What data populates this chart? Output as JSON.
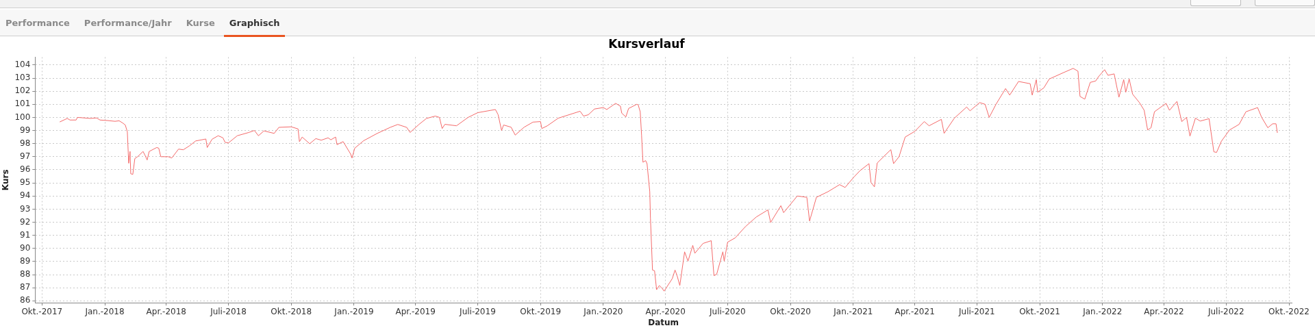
{
  "chart_data": {
    "type": "line",
    "title": "Kursverlauf",
    "xlabel": "Datum",
    "ylabel": "Kurs",
    "annotations": [
      "Performance",
      "Performance/Jahr",
      "Kurse",
      "Graphisch"
    ],
    "x": [
      "2017-10-27",
      "2017-11-07",
      "2017-11-11",
      "2017-11-20",
      "2017-11-22",
      "2017-12-11",
      "2017-12-20",
      "2017-12-25",
      "2018-01-05",
      "2018-01-16",
      "2018-01-22",
      "2018-01-27",
      "2018-01-31",
      "2018-02-03",
      "2018-02-05",
      "2018-02-07",
      "2018-02-08",
      "2018-02-11",
      "2018-02-14",
      "2018-02-18",
      "2018-02-26",
      "2018-03-01",
      "2018-03-04",
      "2018-03-07",
      "2018-03-18",
      "2018-03-21",
      "2018-03-24",
      "2018-04-04",
      "2018-04-09",
      "2018-04-19",
      "2018-04-26",
      "2018-05-05",
      "2018-05-14",
      "2018-05-29",
      "2018-05-31",
      "2018-06-07",
      "2018-06-16",
      "2018-06-23",
      "2018-06-26",
      "2018-07-01",
      "2018-07-14",
      "2018-07-31",
      "2018-08-08",
      "2018-08-14",
      "2018-08-22",
      "2018-09-06",
      "2018-09-13",
      "2018-10-01",
      "2018-10-11",
      "2018-10-13",
      "2018-10-17",
      "2018-10-28",
      "2018-11-06",
      "2018-11-14",
      "2018-11-24",
      "2018-11-28",
      "2018-12-05",
      "2018-12-07",
      "2018-12-16",
      "2018-12-27",
      "2018-12-29",
      "2019-01-02",
      "2019-01-15",
      "2019-02-04",
      "2019-02-23",
      "2019-03-06",
      "2019-03-19",
      "2019-03-24",
      "2019-04-06",
      "2019-04-17",
      "2019-04-30",
      "2019-05-06",
      "2019-05-10",
      "2019-05-14",
      "2019-05-31",
      "2019-06-17",
      "2019-07-01",
      "2019-07-27",
      "2019-07-31",
      "2019-08-05",
      "2019-08-08",
      "2019-08-19",
      "2019-08-25",
      "2019-09-07",
      "2019-09-20",
      "2019-10-01",
      "2019-10-03",
      "2019-10-11",
      "2019-10-27",
      "2019-11-28",
      "2019-12-03",
      "2019-12-10",
      "2019-12-19",
      "2020-01-01",
      "2020-01-06",
      "2020-01-19",
      "2020-01-26",
      "2020-01-28",
      "2020-02-03",
      "2020-02-07",
      "2020-02-19",
      "2020-02-21",
      "2020-02-24",
      "2020-02-26",
      "2020-02-28",
      "2020-03-03",
      "2020-03-05",
      "2020-03-09",
      "2020-03-10",
      "2020-03-13",
      "2020-03-16",
      "2020-03-19",
      "2020-03-23",
      "2020-03-27",
      "2020-03-30",
      "2020-04-03",
      "2020-04-11",
      "2020-04-15",
      "2020-04-18",
      "2020-04-22",
      "2020-04-29",
      "2020-05-04",
      "2020-05-11",
      "2020-05-14",
      "2020-05-26",
      "2020-06-07",
      "2020-06-11",
      "2020-06-15",
      "2020-06-24",
      "2020-06-26",
      "2020-07-01",
      "2020-07-12",
      "2020-07-27",
      "2020-08-12",
      "2020-08-29",
      "2020-09-02",
      "2020-09-17",
      "2020-09-21",
      "2020-10-11",
      "2020-10-25",
      "2020-10-29",
      "2020-11-08",
      "2020-11-25",
      "2020-12-12",
      "2020-12-20",
      "2021-01-02",
      "2021-01-11",
      "2021-01-24",
      "2021-01-27",
      "2021-02-01",
      "2021-02-05",
      "2021-02-25",
      "2021-03-01",
      "2021-03-09",
      "2021-03-18",
      "2021-04-01",
      "2021-04-15",
      "2021-04-22",
      "2021-05-10",
      "2021-05-14",
      "2021-05-20",
      "2021-05-29",
      "2021-06-16",
      "2021-06-21",
      "2021-07-05",
      "2021-07-13",
      "2021-07-19",
      "2021-07-29",
      "2021-08-12",
      "2021-08-18",
      "2021-08-31",
      "2021-09-17",
      "2021-09-20",
      "2021-09-26",
      "2021-09-28",
      "2021-10-07",
      "2021-10-15",
      "2021-11-05",
      "2021-11-19",
      "2021-11-26",
      "2021-11-29",
      "2021-12-06",
      "2021-12-14",
      "2021-12-22",
      "2021-12-26",
      "2022-01-04",
      "2022-01-09",
      "2022-01-18",
      "2022-01-25",
      "2022-02-01",
      "2022-02-04",
      "2022-02-09",
      "2022-02-14",
      "2022-02-24",
      "2022-03-03",
      "2022-03-08",
      "2022-03-13",
      "2022-03-18",
      "2022-04-04",
      "2022-04-09",
      "2022-04-20",
      "2022-04-27",
      "2022-05-04",
      "2022-05-09",
      "2022-05-17",
      "2022-05-24",
      "2022-06-06",
      "2022-06-13",
      "2022-06-17",
      "2022-06-24",
      "2022-07-06",
      "2022-07-20",
      "2022-07-30",
      "2022-08-14",
      "2022-08-16",
      "2022-08-22",
      "2022-08-31",
      "2022-09-07",
      "2022-09-12",
      "2022-09-14"
    ],
    "series": [
      {
        "color": "#f46a6a",
        "values": [
          99.65,
          99.92,
          99.8,
          99.8,
          100.0,
          99.92,
          99.96,
          99.8,
          99.76,
          99.7,
          99.74,
          99.58,
          99.42,
          98.9,
          96.5,
          97.4,
          95.7,
          95.65,
          96.86,
          97.0,
          97.4,
          97.1,
          96.75,
          97.4,
          97.7,
          97.65,
          97.0,
          97.0,
          96.9,
          97.58,
          97.53,
          97.83,
          98.2,
          98.35,
          97.7,
          98.33,
          98.6,
          98.44,
          98.1,
          98.05,
          98.6,
          98.85,
          99.0,
          98.6,
          98.97,
          98.78,
          99.24,
          99.28,
          99.12,
          98.15,
          98.5,
          97.99,
          98.38,
          98.26,
          98.44,
          98.29,
          98.5,
          97.92,
          98.15,
          97.2,
          96.9,
          97.65,
          98.22,
          98.78,
          99.24,
          99.46,
          99.24,
          98.85,
          99.46,
          99.92,
          100.1,
          100.0,
          99.15,
          99.47,
          99.36,
          100.0,
          100.36,
          100.6,
          100.2,
          99.0,
          99.42,
          99.25,
          98.65,
          99.25,
          99.64,
          99.68,
          99.15,
          99.36,
          99.94,
          100.47,
          100.1,
          100.2,
          100.64,
          100.75,
          100.6,
          101.07,
          100.86,
          100.32,
          100.04,
          100.68,
          101.0,
          100.96,
          100.43,
          98.65,
          96.58,
          96.7,
          96.47,
          94.33,
          92.3,
          88.35,
          88.3,
          86.85,
          87.17,
          86.96,
          86.74,
          87.06,
          87.7,
          88.35,
          87.92,
          87.17,
          89.74,
          89.03,
          90.23,
          89.63,
          90.38,
          90.59,
          87.92,
          88.03,
          89.74,
          89.03,
          90.48,
          90.8,
          91.66,
          92.4,
          92.94,
          91.98,
          93.26,
          92.73,
          94.0,
          93.9,
          92.09,
          93.9,
          94.33,
          94.87,
          94.65,
          95.45,
          95.94,
          96.47,
          95.02,
          94.7,
          96.52,
          97.54,
          96.47,
          97.0,
          98.5,
          98.93,
          99.68,
          99.36,
          99.85,
          98.78,
          99.25,
          99.94,
          100.79,
          100.5,
          101.13,
          101.0,
          100.0,
          101.0,
          102.2,
          101.7,
          102.74,
          102.57,
          101.7,
          102.88,
          101.92,
          102.25,
          102.93,
          103.42,
          103.74,
          103.53,
          101.6,
          101.39,
          102.67,
          102.78,
          103.1,
          103.64,
          103.21,
          103.32,
          101.54,
          102.88,
          101.92,
          102.93,
          101.77,
          101.13,
          100.54,
          99.04,
          99.21,
          100.43,
          101.07,
          100.54,
          101.22,
          99.68,
          100.0,
          98.57,
          99.94,
          99.72,
          99.9,
          97.37,
          97.33,
          98.18,
          99.04,
          99.47,
          100.43,
          100.71,
          100.75,
          100.0,
          99.21,
          99.51,
          99.51,
          98.82
        ]
      }
    ],
    "xlim": [
      "2017-09-21",
      "2022-10-05"
    ],
    "xticks": [
      {
        "value": "2017-10-01",
        "label": "Okt.-2017"
      },
      {
        "value": "2018-01-01",
        "label": "Jan.-2018"
      },
      {
        "value": "2018-04-01",
        "label": "Apr.-2018"
      },
      {
        "value": "2018-07-01",
        "label": "Juli-2018"
      },
      {
        "value": "2018-10-01",
        "label": "Okt.-2018"
      },
      {
        "value": "2019-01-01",
        "label": "Jan.-2019"
      },
      {
        "value": "2019-04-01",
        "label": "Apr.-2019"
      },
      {
        "value": "2019-07-01",
        "label": "Juli-2019"
      },
      {
        "value": "2019-10-01",
        "label": "Okt.-2019"
      },
      {
        "value": "2020-01-01",
        "label": "Jan.-2020"
      },
      {
        "value": "2020-04-01",
        "label": "Apr.-2020"
      },
      {
        "value": "2020-07-01",
        "label": "Juli-2020"
      },
      {
        "value": "2020-10-01",
        "label": "Okt.-2020"
      },
      {
        "value": "2021-01-01",
        "label": "Jan.-2021"
      },
      {
        "value": "2021-04-01",
        "label": "Apr.-2021"
      },
      {
        "value": "2021-07-01",
        "label": "Juli-2021"
      },
      {
        "value": "2021-10-01",
        "label": "Okt.-2021"
      },
      {
        "value": "2022-01-01",
        "label": "Jan.-2022"
      },
      {
        "value": "2022-04-01",
        "label": "Apr.-2022"
      },
      {
        "value": "2022-07-01",
        "label": "Juli-2022"
      },
      {
        "value": "2022-10-01",
        "label": "Okt.-2022"
      }
    ],
    "ylim": [
      85.85,
      104.6
    ],
    "yticks": [
      86,
      87,
      88,
      89,
      90,
      91,
      92,
      93,
      94,
      95,
      96,
      97,
      98,
      99,
      100,
      101,
      102,
      103,
      104
    ],
    "grid": true,
    "legend": false,
    "marker": "none",
    "line_style": "solid"
  }
}
